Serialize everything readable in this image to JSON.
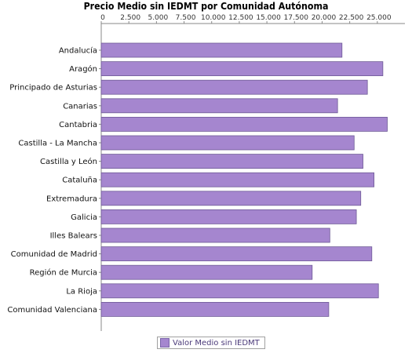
{
  "chart_data": {
    "type": "bar",
    "orientation": "horizontal",
    "title": "Precio Medio sin IEDMT por Comunidad Autónoma",
    "xlabel": "",
    "ylabel": "",
    "xlim": [
      0,
      27500
    ],
    "x_ticks": [
      "0",
      "2.500",
      "5.000",
      "7.500",
      "10.000",
      "12.500",
      "15.000",
      "17.500",
      "20.000",
      "22.500",
      "25.000"
    ],
    "x_tick_values": [
      0,
      2500,
      5000,
      7500,
      10000,
      12500,
      15000,
      17500,
      20000,
      22500,
      25000
    ],
    "axis_position": "top",
    "grid": false,
    "legend_placement": "bottom",
    "categories": [
      "Andalucía",
      "Aragón",
      "Principado de Asturias",
      "Canarias",
      "Cantabria",
      "Castilla - La Mancha",
      "Castilla y León",
      "Cataluña",
      "Extremadura",
      "Galicia",
      "Illes Balears",
      "Comunidad de Madrid",
      "Región de Murcia",
      "La Rioja",
      "Comunidad Valenciana"
    ],
    "series": [
      {
        "name": "Valor Medio sin IEDMT",
        "color": "#a586cf",
        "values": [
          21800,
          25500,
          24100,
          21400,
          25900,
          22900,
          23700,
          24700,
          23500,
          23100,
          20700,
          24500,
          19100,
          25100,
          20600
        ]
      }
    ]
  }
}
